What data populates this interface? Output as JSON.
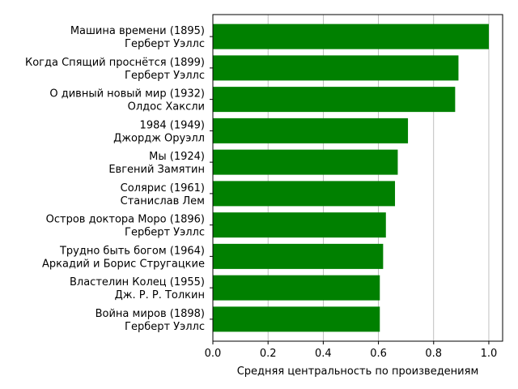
{
  "chart_data": {
    "type": "bar",
    "orientation": "horizontal",
    "title": "",
    "xlabel": "Средняя центральность по произведениям",
    "ylabel": "",
    "xlim": [
      0,
      1.05
    ],
    "xticks": [
      0.0,
      0.2,
      0.4,
      0.6,
      0.8,
      1.0
    ],
    "xtick_labels": [
      "0.0",
      "0.2",
      "0.4",
      "0.6",
      "0.8",
      "1.0"
    ],
    "grid": "vertical",
    "bar_color": "#008000",
    "categories": [
      [
        "Машина времени (1895)",
        "Герберт Уэллс"
      ],
      [
        "Когда Спящий проснётся (1899)",
        "Герберт Уэллс"
      ],
      [
        "О дивный новый мир (1932)",
        "Олдос Хаксли"
      ],
      [
        "1984 (1949)",
        "Джордж Оруэлл"
      ],
      [
        "Мы (1924)",
        "Евгений Замятин"
      ],
      [
        "Солярис (1961)",
        "Станислав Лем"
      ],
      [
        "Остров доктора Моро (1896)",
        "Герберт Уэллс"
      ],
      [
        "Трудно быть богом (1964)",
        "Аркадий и Борис Стругацкие"
      ],
      [
        "Властелин Колец (1955)",
        "Дж. Р. Р. Толкин"
      ],
      [
        "Война миров (1898)",
        "Герберт Уэллс"
      ]
    ],
    "values": [
      1.0,
      0.89,
      0.878,
      0.707,
      0.67,
      0.66,
      0.627,
      0.617,
      0.605,
      0.605
    ]
  }
}
